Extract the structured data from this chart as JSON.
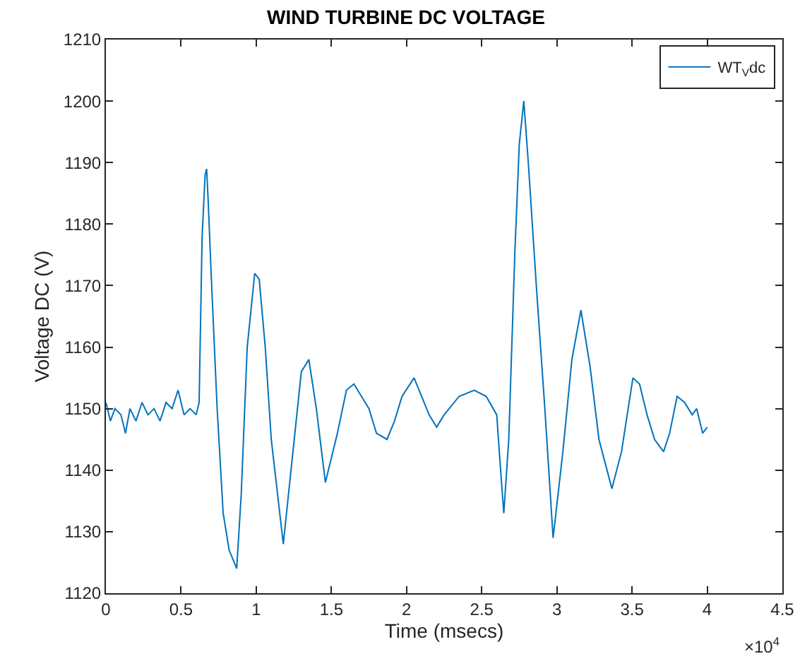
{
  "chart_data": {
    "type": "line",
    "title": "WIND TURBINE DC VOLTAGE",
    "xlabel": "Time (msecs)",
    "ylabel": "Voltage DC (V)",
    "annotations": [
      "×10$^{4}$"
    ],
    "series": [
      {
        "name": "WT$_{V}$dc",
        "color": "#0072bd",
        "x": [
          0,
          0.03,
          0.06,
          0.1,
          0.13,
          0.16,
          0.2,
          0.24,
          0.28,
          0.32,
          0.36,
          0.4,
          0.44,
          0.48,
          0.52,
          0.56,
          0.6,
          0.62,
          0.64,
          0.66,
          0.67,
          0.68,
          0.7,
          0.74,
          0.78,
          0.82,
          0.87,
          0.9,
          0.94,
          0.99,
          1.02,
          1.06,
          1.1,
          1.18,
          1.24,
          1.3,
          1.35,
          1.4,
          1.46,
          1.54,
          1.6,
          1.65,
          1.7,
          1.75,
          1.8,
          1.87,
          1.92,
          1.97,
          2.05,
          2.1,
          2.15,
          2.2,
          2.25,
          2.35,
          2.45,
          2.53,
          2.6,
          2.62,
          2.647,
          2.68,
          2.72,
          2.75,
          2.78,
          2.81,
          2.866,
          2.92,
          2.975,
          3.04,
          3.1,
          3.16,
          3.22,
          3.28,
          3.366,
          3.43,
          3.506,
          3.55,
          3.6,
          3.65,
          3.71,
          3.75,
          3.8,
          3.85,
          3.9,
          3.93,
          3.97,
          4.0
        ],
        "values": [
          1151,
          1148,
          1150,
          1149,
          1146,
          1150,
          1148,
          1151,
          1149,
          1150,
          1148,
          1151,
          1150,
          1153,
          1149,
          1150,
          1149,
          1151,
          1178,
          1188,
          1189,
          1184,
          1172,
          1150,
          1133,
          1127,
          1124,
          1136,
          1160,
          1172,
          1171,
          1160,
          1145,
          1128,
          1142,
          1156,
          1158,
          1150,
          1138,
          1146,
          1153,
          1154,
          1152,
          1150,
          1146,
          1145,
          1148,
          1152,
          1155,
          1152,
          1149,
          1147,
          1149,
          1152,
          1153,
          1152,
          1149,
          1142,
          1133,
          1145,
          1175,
          1193,
          1200,
          1190,
          1169,
          1150,
          1129,
          1143,
          1158,
          1166,
          1157,
          1145,
          1137,
          1143,
          1155,
          1154,
          1149,
          1145,
          1143,
          1146,
          1152,
          1151,
          1149,
          1150,
          1146,
          1147
        ]
      }
    ],
    "xlim": [
      0,
      4.5
    ],
    "ylim": [
      1120,
      1210
    ],
    "xticks": [
      0,
      0.5,
      1,
      1.5,
      2,
      2.5,
      3,
      3.5,
      4,
      4.5
    ],
    "yticks": [
      1120,
      1130,
      1140,
      1150,
      1160,
      1170,
      1180,
      1190,
      1200,
      1210
    ],
    "legend": "top right",
    "marker": "none",
    "line_style": "solid"
  }
}
